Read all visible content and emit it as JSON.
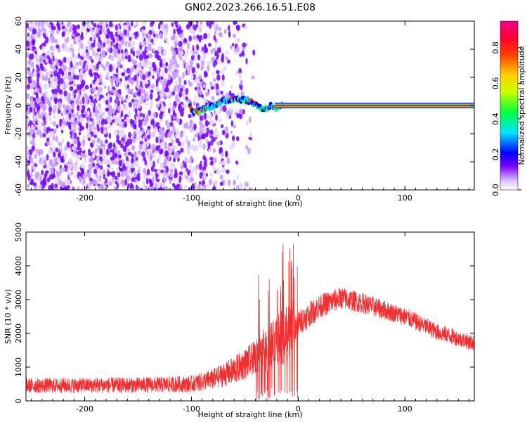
{
  "title": "GN02.2023.266.16.51.E08",
  "chart_data": [
    {
      "type": "heatmap",
      "name": "spectrogram",
      "xlabel": "Height of straight line (km)",
      "ylabel": "Frequency (Hz)",
      "xlim": [
        -255,
        165
      ],
      "ylim": [
        -60,
        60
      ],
      "xticks": [
        "-200",
        "-100",
        "0",
        "100"
      ],
      "yticks": [
        "60",
        "40",
        "20",
        "0",
        "-20",
        "-40",
        "-60"
      ],
      "colorbar": {
        "label": "Normalized spectral amplitude",
        "range": [
          0.0,
          0.95
        ],
        "ticks": [
          "0.0",
          "0.2",
          "0.4",
          "0.6",
          "0.8"
        ]
      },
      "trace": [
        {
          "x": -100,
          "y": -5
        },
        {
          "x": -90,
          "y": -3
        },
        {
          "x": -80,
          "y": 0
        },
        {
          "x": -70,
          "y": 3
        },
        {
          "x": -60,
          "y": 5
        },
        {
          "x": -50,
          "y": 4
        },
        {
          "x": -45,
          "y": 3
        },
        {
          "x": -40,
          "y": 1
        },
        {
          "x": -35,
          "y": -2
        },
        {
          "x": -30,
          "y": -2
        },
        {
          "x": -25,
          "y": 0
        },
        {
          "x": -20,
          "y": -3
        },
        {
          "x": -15,
          "y": 0
        },
        {
          "x": 0,
          "y": 0
        },
        {
          "x": 165,
          "y": 0
        }
      ]
    },
    {
      "type": "line",
      "name": "snr",
      "xlabel": "Height of straight line (km)",
      "ylabel": "SNR (10 * v/v)",
      "xlim": [
        -255,
        165
      ],
      "ylim": [
        0,
        5000
      ],
      "xticks": [
        "-200",
        "-100",
        "0",
        "100"
      ],
      "yticks": [
        "5000",
        "4000",
        "3000",
        "2000",
        "1000",
        "0"
      ],
      "color": "#f03030",
      "envelope": {
        "x": [
          -255,
          -150,
          -100,
          -80,
          -60,
          -40,
          -30,
          -20,
          -10,
          0,
          20,
          40,
          60,
          100,
          130,
          165
        ],
        "baseline": [
          450,
          470,
          500,
          650,
          900,
          1300,
          1500,
          1750,
          2000,
          2300,
          2800,
          3050,
          2900,
          2500,
          2050,
          1700
        ],
        "spread": [
          400,
          420,
          450,
          550,
          750,
          900,
          1200,
          1500,
          1600,
          700,
          650,
          600,
          550,
          500,
          450,
          420
        ]
      }
    }
  ]
}
